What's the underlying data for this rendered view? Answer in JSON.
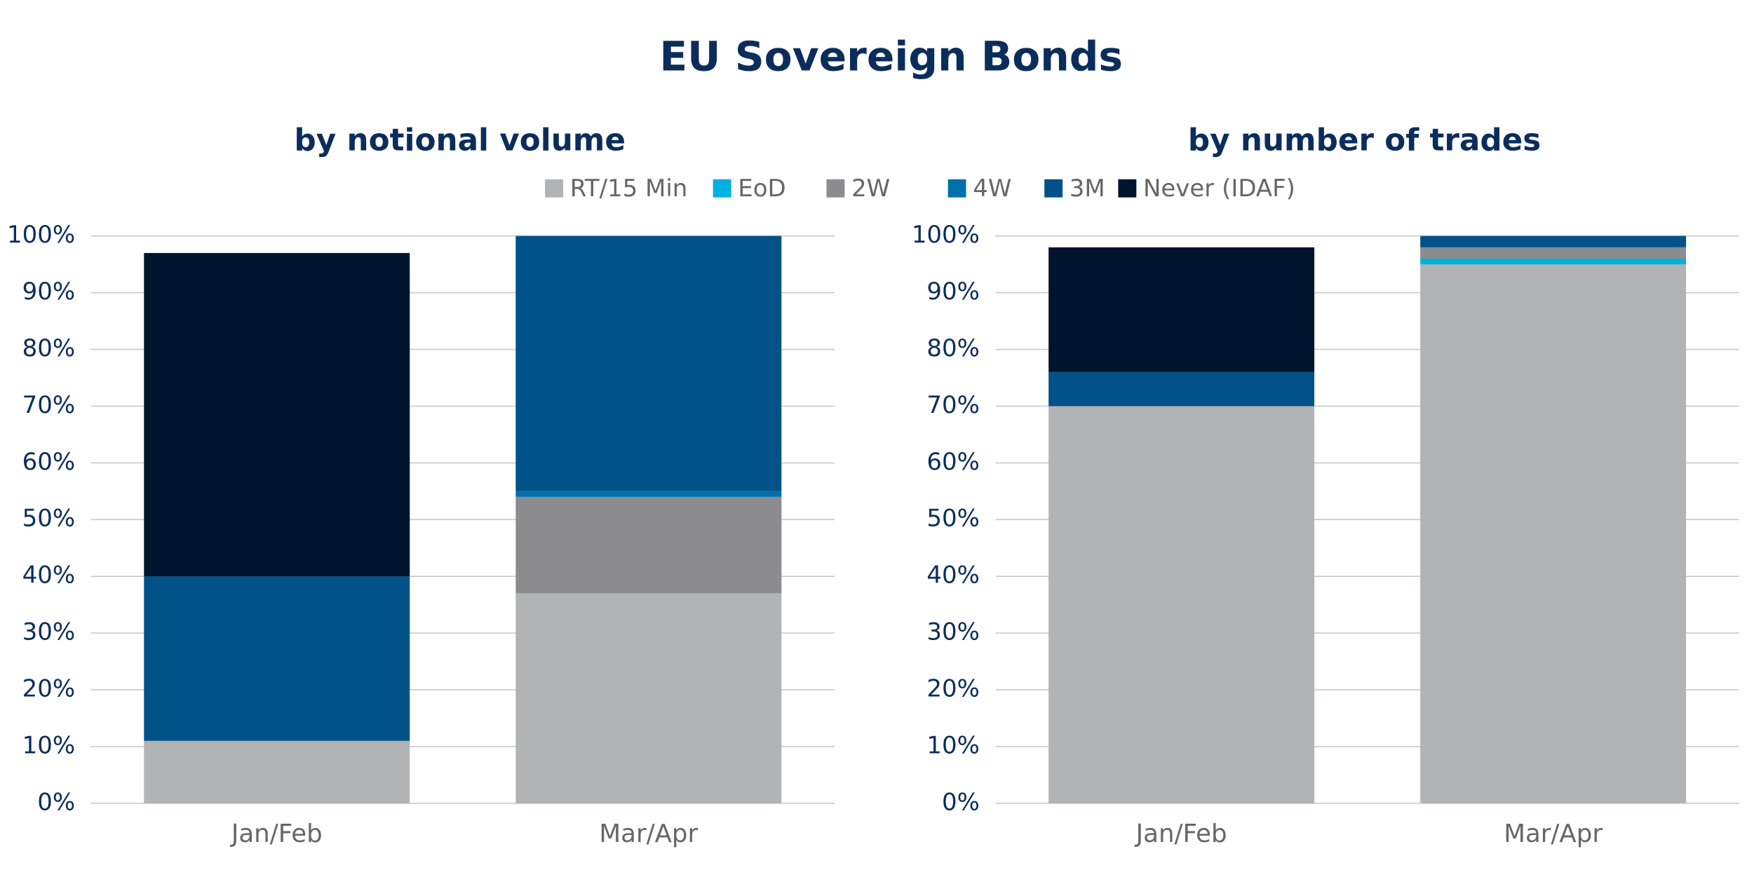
{
  "title": "EU Sovereign Bonds",
  "chart_data": [
    {
      "type": "stacked-bar",
      "title": "by notional volume",
      "categories": [
        "Jan/Feb",
        "Mar/Apr"
      ],
      "series": [
        {
          "name": "RT/15 Min",
          "color": "#b1b3b4",
          "values": [
            11,
            37
          ]
        },
        {
          "name": "EoD",
          "color": "#00b0e0",
          "values": [
            0,
            0
          ]
        },
        {
          "name": "2W",
          "color": "#8c8c8e",
          "values": [
            0,
            17
          ]
        },
        {
          "name": "4W",
          "color": "#0070aa",
          "values": [
            0,
            1
          ]
        },
        {
          "name": "3M",
          "color": "#005288",
          "values": [
            29,
            45
          ]
        },
        {
          "name": "Never (IDAF)",
          "color": "#00142d",
          "values": [
            57,
            0
          ]
        }
      ],
      "ylim": [
        0,
        100
      ],
      "yticks": [
        {
          "value": 0,
          "label": "0%"
        },
        {
          "value": 10,
          "label": "10%"
        },
        {
          "value": 20,
          "label": "20%"
        },
        {
          "value": 30,
          "label": "30%"
        },
        {
          "value": 40,
          "label": "40%"
        },
        {
          "value": 50,
          "label": "50%"
        },
        {
          "value": 60,
          "label": "60%"
        },
        {
          "value": 70,
          "label": "70%"
        },
        {
          "value": 80,
          "label": "80%"
        },
        {
          "value": 90,
          "label": "90%"
        },
        {
          "value": 100,
          "label": "100%"
        }
      ],
      "grid": true
    },
    {
      "type": "stacked-bar",
      "title": "by number of trades",
      "categories": [
        "Jan/Feb",
        "Mar/Apr"
      ],
      "series": [
        {
          "name": "RT/15 Min",
          "color": "#b1b3b4",
          "values": [
            70,
            95
          ]
        },
        {
          "name": "EoD",
          "color": "#00b0e0",
          "values": [
            0,
            1
          ]
        },
        {
          "name": "2W",
          "color": "#8c8c8e",
          "values": [
            0,
            2
          ]
        },
        {
          "name": "4W",
          "color": "#0070aa",
          "values": [
            0,
            0
          ]
        },
        {
          "name": "3M",
          "color": "#005288",
          "values": [
            6,
            2
          ]
        },
        {
          "name": "Never (IDAF)",
          "color": "#00142d",
          "values": [
            22,
            0
          ]
        }
      ],
      "ylim": [
        0,
        100
      ],
      "yticks": [
        {
          "value": 0,
          "label": "0%"
        },
        {
          "value": 10,
          "label": "10%"
        },
        {
          "value": 20,
          "label": "20%"
        },
        {
          "value": 30,
          "label": "30%"
        },
        {
          "value": 40,
          "label": "40%"
        },
        {
          "value": 50,
          "label": "50%"
        },
        {
          "value": 60,
          "label": "60%"
        },
        {
          "value": 70,
          "label": "70%"
        },
        {
          "value": 80,
          "label": "80%"
        },
        {
          "value": 90,
          "label": "90%"
        },
        {
          "value": 100,
          "label": "100%"
        }
      ],
      "grid": true
    }
  ]
}
